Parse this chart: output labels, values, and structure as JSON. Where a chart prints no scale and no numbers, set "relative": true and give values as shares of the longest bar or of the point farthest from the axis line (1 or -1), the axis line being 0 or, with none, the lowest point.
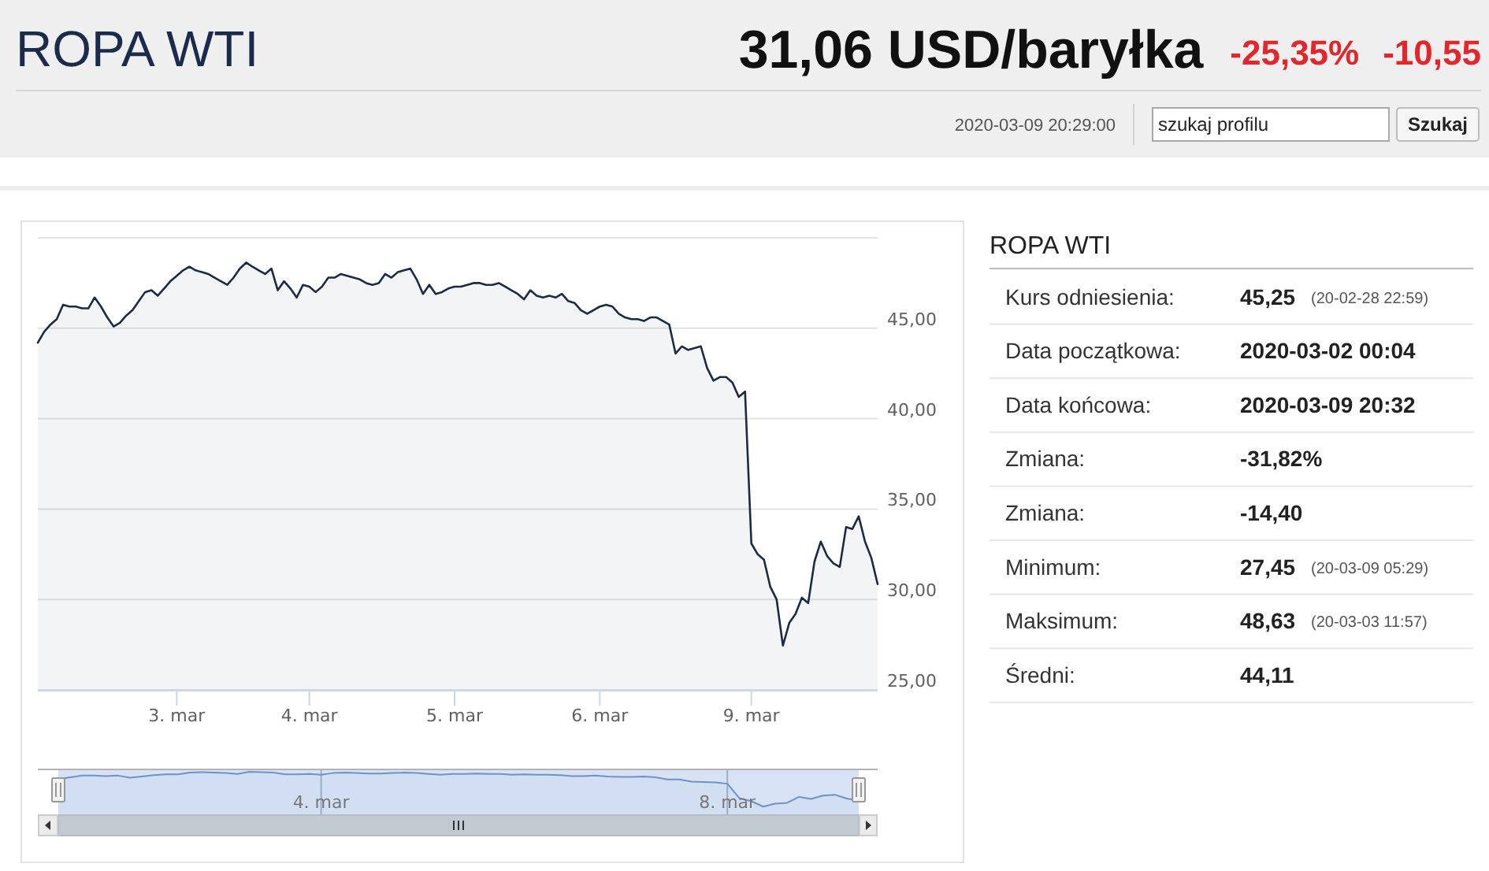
{
  "chart_data": [
    {
      "type": "other",
      "title": "ROPA WTI",
      "subtitle": "31,06 USD/baryłka",
      "annotations": [
        "-25,35%",
        "-10,55",
        "2020-03-09 20:29:00",
        "szukaj profilu",
        "Szukaj"
      ]
    },
    {
      "type": "area",
      "color": "#1c2b44",
      "categories": [
        null,
        null,
        null,
        null,
        null,
        null,
        null,
        null,
        null,
        null,
        null,
        null,
        null,
        null,
        null,
        null,
        null,
        null,
        null,
        null,
        null,
        null,
        "3. mar",
        null,
        null,
        null,
        null,
        null,
        null,
        null,
        null,
        null,
        null,
        null,
        null,
        null,
        null,
        null,
        null,
        null,
        null,
        null,
        null,
        "4. mar",
        null,
        null,
        null,
        null,
        null,
        null,
        null,
        null,
        null,
        null,
        null,
        null,
        null,
        null,
        null,
        null,
        null,
        null,
        null,
        null,
        null,
        null,
        "5. mar",
        null,
        null,
        null,
        null,
        null,
        null,
        null,
        null,
        null,
        null,
        null,
        null,
        null,
        null,
        null,
        null,
        null,
        null,
        null,
        null,
        null,
        null,
        "6. mar",
        null,
        null,
        null,
        null,
        null,
        null,
        null,
        null,
        null,
        null,
        null,
        null,
        null,
        null,
        null,
        null,
        null,
        null,
        null,
        null,
        null,
        null,
        null,
        "9. mar",
        null,
        null,
        null,
        null,
        null,
        null,
        null,
        null,
        null,
        null,
        null,
        null,
        null,
        null,
        null,
        null,
        null,
        null,
        null,
        null
      ],
      "values": [
        44.2,
        44.8,
        45.2,
        45.5,
        46.3,
        46.2,
        46.2,
        46.1,
        46.1,
        46.7,
        46.2,
        45.6,
        45.1,
        45.3,
        45.7,
        46,
        46.5,
        47,
        47.1,
        46.8,
        47.2,
        47.6,
        47.9,
        48.2,
        48.4,
        48.2,
        48.1,
        48,
        47.8,
        47.6,
        47.4,
        47.8,
        48.3,
        48.63,
        48.4,
        48.2,
        48,
        48.3,
        47.1,
        47.6,
        47.2,
        46.7,
        47.4,
        47.3,
        47,
        47.3,
        47.8,
        47.8,
        48,
        47.9,
        47.8,
        47.7,
        47.5,
        47.4,
        47.5,
        48,
        47.8,
        48.1,
        48.2,
        48.3,
        47.7,
        46.9,
        47.4,
        46.9,
        47,
        47.2,
        47.3,
        47.3,
        47.4,
        47.5,
        47.5,
        47.4,
        47.4,
        47.5,
        47.3,
        47.1,
        46.9,
        46.6,
        47.1,
        46.8,
        46.7,
        46.8,
        46.7,
        46.9,
        46.5,
        46.4,
        46,
        45.8,
        46,
        46.2,
        46.3,
        46.2,
        45.8,
        45.6,
        45.5,
        45.5,
        45.4,
        45.6,
        45.6,
        45.4,
        45.2,
        43.6,
        44,
        43.8,
        43.9,
        44,
        42.8,
        42.1,
        42.3,
        42.3,
        42,
        41.2,
        41.5,
        33.1,
        32.5,
        32.2,
        30.7,
        30,
        27.45,
        28.7,
        29.2,
        30.1,
        29.8,
        32.1,
        33.2,
        32.4,
        32,
        31.8,
        34,
        33.9,
        34.6,
        33.2,
        32.3,
        30.85
      ],
      "ylim": [
        25,
        50
      ],
      "yticks": [
        {
          "value": 25,
          "label": "25,00"
        },
        {
          "value": 30,
          "label": "30,00"
        },
        {
          "value": 35,
          "label": "35,00"
        },
        {
          "value": 40,
          "label": "40,00"
        },
        {
          "value": 45,
          "label": "45,00"
        },
        {
          "value": 50,
          "label": null
        }
      ],
      "grid": "y"
    },
    {
      "type": "other",
      "title": "ROPA WTI",
      "cell_labels": [
        [
          "Kurs odniesienia:",
          "45,25",
          "(20-02-28 22:59)"
        ],
        [
          "Data początkowa:",
          "2020-03-02 00:04",
          null
        ],
        [
          "Data końcowa:",
          "2020-03-09 20:32",
          null
        ],
        [
          "Zmiana:",
          "-31,82%",
          null
        ],
        [
          "Zmiana:",
          "-14,40",
          null
        ],
        [
          "Minimum:",
          "27,45",
          "(20-03-09 05:29)"
        ],
        [
          "Maksimum:",
          "48,63",
          "(20-03-03 11:57)"
        ],
        [
          "Średni:",
          "44,11",
          null
        ]
      ]
    },
    {
      "type": "area",
      "relative": true,
      "color": "#6e92c8",
      "categories": [
        null,
        null,
        null,
        null,
        null,
        null,
        null,
        null,
        null,
        null,
        null,
        null,
        null,
        null,
        null,
        null,
        null,
        null,
        null,
        null,
        null,
        null,
        "4. mar",
        null,
        null,
        null,
        null,
        null,
        null,
        null,
        null,
        null,
        null,
        null,
        null,
        null,
        null,
        null,
        null,
        null,
        null,
        null,
        null,
        null,
        null,
        null,
        null,
        null,
        null,
        null,
        null,
        null,
        null,
        null,
        null,
        null,
        "8. mar",
        null,
        null,
        null,
        null,
        null,
        null,
        null,
        null,
        null,
        null,
        null
      ],
      "values": [
        0.83,
        0.87,
        0.91,
        0.91,
        0.9,
        0.91,
        0.86,
        0.89,
        0.92,
        0.94,
        0.94,
        0.98,
        0.99,
        0.98,
        0.97,
        0.95,
        1,
        0.99,
        0.98,
        0.94,
        0.94,
        0.95,
        0.93,
        0.97,
        0.98,
        0.97,
        0.96,
        0.96,
        0.97,
        0.98,
        0.97,
        0.95,
        0.93,
        0.95,
        0.95,
        0.96,
        0.95,
        0.95,
        0.93,
        0.94,
        0.93,
        0.93,
        0.92,
        0.9,
        0.9,
        0.91,
        0.89,
        0.88,
        0.88,
        0.89,
        0.87,
        0.82,
        0.82,
        0.77,
        0.76,
        0.75,
        0.72,
        0.38,
        0.31,
        0.18,
        0.25,
        0.27,
        0.41,
        0.36,
        0.44,
        0.46,
        0.37,
        0.32
      ],
      "grid": "x"
    }
  ]
}
